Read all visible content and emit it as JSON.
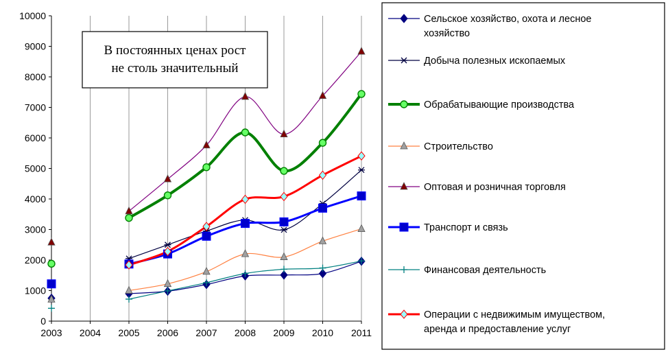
{
  "chart_data": {
    "type": "line",
    "title": "",
    "xlabel": "",
    "ylabel": "",
    "x": [
      2003,
      2004,
      2005,
      2006,
      2007,
      2008,
      2009,
      2010,
      2011
    ],
    "ylim": [
      0,
      10000
    ],
    "yticks": [
      0,
      1000,
      2000,
      3000,
      4000,
      5000,
      6000,
      7000,
      8000,
      9000,
      10000
    ],
    "xticks": [
      "2003",
      "2004",
      "2005",
      "2006",
      "2007",
      "2008",
      "2009",
      "2010",
      "2011"
    ],
    "grid": "vertical",
    "legend_position": "right",
    "annotation": [
      "В постоянных ценах рост",
      "не столь значительный"
    ],
    "series": [
      {
        "name": "Сельское хозяйство, охота и лесное хозяйство",
        "color": "#000080",
        "marker": "diamond",
        "width": 1.2,
        "values": [
          750,
          null,
          900,
          980,
          1200,
          1480,
          1510,
          1560,
          1960
        ]
      },
      {
        "name": "Добыча полезных ископаемых",
        "color": "#000040",
        "marker": "star",
        "width": 1.2,
        "values": [
          null,
          null,
          2050,
          2500,
          2950,
          3310,
          2990,
          3850,
          4950
        ]
      },
      {
        "name": "Обрабатывающие производства",
        "color": "#008000",
        "marker": "circle",
        "marker_fill": "#66ff66",
        "width": 4,
        "values": [
          1880,
          null,
          3380,
          4120,
          5040,
          6180,
          4920,
          5840,
          7440
        ]
      },
      {
        "name": "Строительство",
        "color": "#ff8040",
        "marker": "triangle",
        "marker_fill": "#a0a0a0",
        "width": 1.2,
        "values": [
          710,
          null,
          1000,
          1220,
          1620,
          2200,
          2100,
          2620,
          3020
        ]
      },
      {
        "name": "Оптовая и розничная торговля",
        "color": "#800080",
        "marker": "triangle",
        "marker_fill": "#800000",
        "width": 1.2,
        "values": [
          2580,
          null,
          3600,
          4650,
          5760,
          7350,
          6120,
          7380,
          8830
        ]
      },
      {
        "name": "Транспорт и связь",
        "color": "#0000ff",
        "marker": "square",
        "marker_fill": "#0000cc",
        "width": 3,
        "values": [
          1220,
          null,
          1870,
          2200,
          2780,
          3200,
          3250,
          3700,
          4100
        ]
      },
      {
        "name": "Финансовая деятельность",
        "color": "#008080",
        "marker": "plus",
        "width": 1.2,
        "values": [
          420,
          null,
          720,
          990,
          1260,
          1560,
          1700,
          1740,
          1970
        ]
      },
      {
        "name": "Операции с недвижимым имуществом, аренда и предоставление услуг",
        "color": "#ff0000",
        "marker": "diamond",
        "marker_fill": "#99ffff",
        "width": 3,
        "values": [
          null,
          null,
          1840,
          2280,
          3100,
          3990,
          4080,
          4780,
          5410
        ]
      }
    ]
  },
  "legend": [
    {
      "lines": [
        "Сельское хозяйство, охота и лесное",
        "хозяйство"
      ]
    },
    {
      "lines": [
        "Добыча полезных ископаемых"
      ]
    },
    {
      "lines": [
        "Обрабатывающие производства"
      ]
    },
    {
      "lines": [
        "Строительство"
      ]
    },
    {
      "lines": [
        "Оптовая и розничная торговля"
      ]
    },
    {
      "lines": [
        "Транспорт и связь"
      ]
    },
    {
      "lines": [
        "Финансовая деятельность"
      ]
    },
    {
      "lines": [
        "Операции с недвижимым имуществом,",
        "аренда и предоставление услуг"
      ]
    }
  ]
}
